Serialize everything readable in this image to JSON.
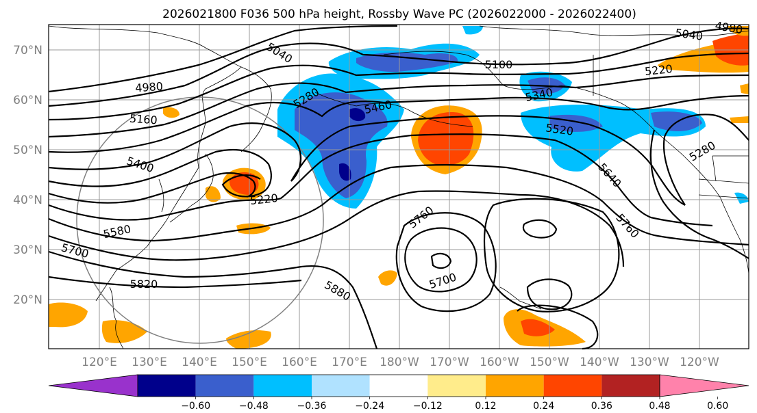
{
  "title": "2026021800 F036 500 hPa height, Rossby Wave PC (2026022000 - 2026022400)",
  "lat_labels": [
    "70°N",
    "60°N",
    "50°N",
    "40°N",
    "30°N",
    "20°N"
  ],
  "lon_labels": [
    "120°E",
    "130°E",
    "140°E",
    "150°E",
    "160°E",
    "170°E",
    "180°W",
    "170°W",
    "160°W",
    "150°W",
    "140°W",
    "130°W",
    "120°W"
  ],
  "colorbar": {
    "colors": [
      "#9932cc",
      "#00008b",
      "#3a5fcd",
      "#00bfff",
      "#b0e2ff",
      "#ffffff",
      "#ffec8b",
      "#ffa500",
      "#ff4500",
      "#b22222",
      "#ff82ab"
    ],
    "tick_labels": [
      "−0.60",
      "−0.48",
      "−0.36",
      "−0.24",
      "−0.12",
      "0.12",
      "0.24",
      "0.36",
      "0.48",
      "0.60"
    ]
  },
  "contour_labels": [
    {
      "text": "5040"
    },
    {
      "text": "4980"
    },
    {
      "text": "5160"
    },
    {
      "text": "5400"
    },
    {
      "text": "5580"
    },
    {
      "text": "5700"
    },
    {
      "text": "5820"
    },
    {
      "text": "5280"
    },
    {
      "text": "5460"
    },
    {
      "text": "5220"
    },
    {
      "text": "5880"
    },
    {
      "text": "5760"
    },
    {
      "text": "5700"
    },
    {
      "text": "5100"
    },
    {
      "text": "5340"
    },
    {
      "text": "5520"
    },
    {
      "text": "5640"
    },
    {
      "text": "5760"
    },
    {
      "text": "5220"
    },
    {
      "text": "5040"
    },
    {
      "text": "4980"
    },
    {
      "text": "5280"
    }
  ]
}
